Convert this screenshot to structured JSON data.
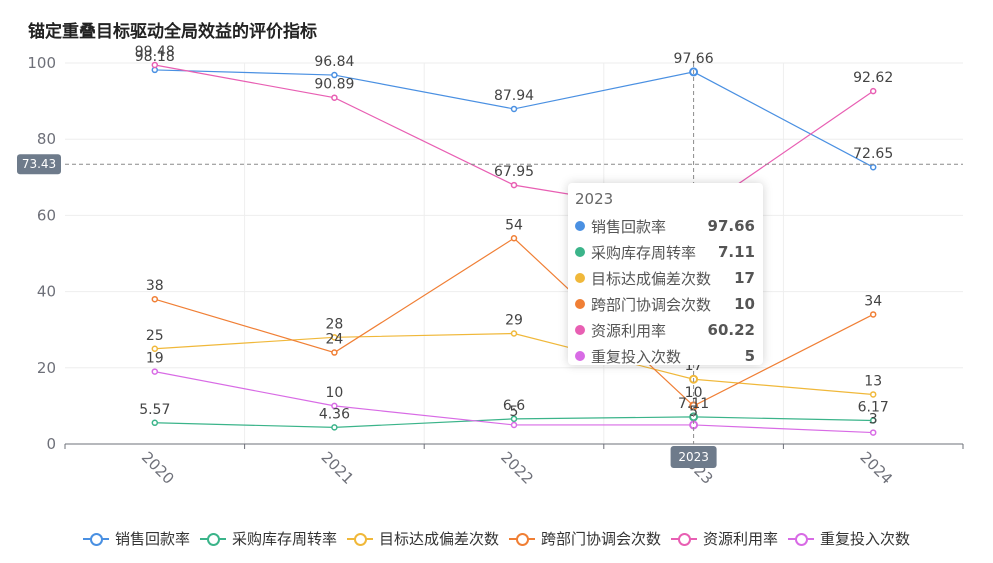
{
  "chart_data": {
    "type": "line",
    "title": "锚定重叠目标驱动全局效益的评价指标",
    "categories": [
      "2020",
      "2021",
      "2022",
      "2023",
      "2024"
    ],
    "ylim": [
      0,
      100
    ],
    "yticks": [
      0,
      20,
      40,
      60,
      80,
      100
    ],
    "grid": true,
    "legend_position": "bottom",
    "series": [
      {
        "name": "销售回款率",
        "color": "#4a90e2",
        "values": [
          98.18,
          96.84,
          87.94,
          97.66,
          72.65
        ]
      },
      {
        "name": "采购库存周转率",
        "color": "#3bb48a",
        "values": [
          5.57,
          4.36,
          6.6,
          7.11,
          6.17
        ]
      },
      {
        "name": "目标达成偏差次数",
        "color": "#f0b83a",
        "values": [
          25,
          28,
          29,
          17,
          13
        ]
      },
      {
        "name": "跨部门协调会次数",
        "color": "#f07f35",
        "values": [
          38,
          24,
          54,
          10,
          34
        ]
      },
      {
        "name": "资源利用率",
        "color": "#e85fb3",
        "values": [
          99.48,
          90.89,
          67.95,
          60.22,
          92.62
        ]
      },
      {
        "name": "重复投入次数",
        "color": "#d86be5",
        "values": [
          19,
          10,
          5,
          5,
          3
        ]
      }
    ],
    "crosshair": {
      "x_label": "2023",
      "y_label": "73.43"
    },
    "tooltip": {
      "title": "2023",
      "rows": [
        {
          "name": "销售回款率",
          "value": "97.66",
          "color": "#4a90e2"
        },
        {
          "name": "采购库存周转率",
          "value": "7.11",
          "color": "#3bb48a"
        },
        {
          "name": "目标达成偏差次数",
          "value": "17",
          "color": "#f0b83a"
        },
        {
          "name": "跨部门协调会次数",
          "value": "10",
          "color": "#f07f35"
        },
        {
          "name": "资源利用率",
          "value": "60.22",
          "color": "#e85fb3"
        },
        {
          "name": "重复投入次数",
          "value": "5",
          "color": "#d86be5"
        }
      ]
    }
  }
}
